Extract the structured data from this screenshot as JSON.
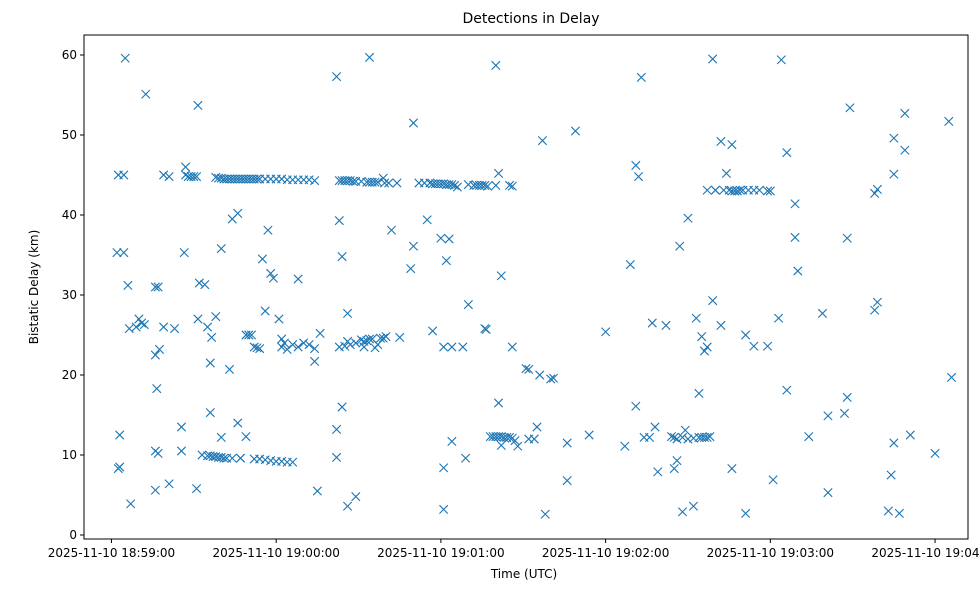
{
  "chart_data": {
    "type": "scatter",
    "title": "Detections in Delay",
    "xlabel": "Time (UTC)",
    "ylabel": "Bistatic Delay (km)",
    "marker": "x",
    "color": "#1f77b4",
    "grid": false,
    "x_ticks": [
      {
        "t": 0,
        "label": "2025-11-10 18:59:00"
      },
      {
        "t": 60,
        "label": "2025-11-10 19:00:00"
      },
      {
        "t": 120,
        "label": "2025-11-10 19:01:00"
      },
      {
        "t": 180,
        "label": "2025-11-10 19:02:00"
      },
      {
        "t": 240,
        "label": "2025-11-10 19:03:00"
      },
      {
        "t": 300,
        "label": "2025-11-10 19:04:00"
      }
    ],
    "y_ticks": [
      0,
      10,
      20,
      30,
      40,
      50,
      60
    ],
    "xlim": [
      -10,
      312
    ],
    "ylim": [
      -0.5,
      62.5
    ],
    "points": [
      [
        2.5,
        45.0
      ],
      [
        4.5,
        45.0
      ],
      [
        2.0,
        35.3
      ],
      [
        4.5,
        35.3
      ],
      [
        5.0,
        59.6
      ],
      [
        12.5,
        55.1
      ],
      [
        6.0,
        31.2
      ],
      [
        6.5,
        25.8
      ],
      [
        9.0,
        26.0
      ],
      [
        10.0,
        27.0
      ],
      [
        11.0,
        26.5
      ],
      [
        12.0,
        26.3
      ],
      [
        3.0,
        12.5
      ],
      [
        2.5,
        8.3
      ],
      [
        3.0,
        8.5
      ],
      [
        7.0,
        3.9
      ],
      [
        16.0,
        31.0
      ],
      [
        17.0,
        31.0
      ],
      [
        16.0,
        22.5
      ],
      [
        17.5,
        23.2
      ],
      [
        19.0,
        26.0
      ],
      [
        16.5,
        18.3
      ],
      [
        16.0,
        10.5
      ],
      [
        17.0,
        10.2
      ],
      [
        16.0,
        5.6
      ],
      [
        21.0,
        6.4
      ],
      [
        19.0,
        45.0
      ],
      [
        21.0,
        44.8
      ],
      [
        23.0,
        25.8
      ],
      [
        27.0,
        46.0
      ],
      [
        27.0,
        45.0
      ],
      [
        28.0,
        44.8
      ],
      [
        29.0,
        44.8
      ],
      [
        30.0,
        44.8
      ],
      [
        31.0,
        44.8
      ],
      [
        26.5,
        35.3
      ],
      [
        31.5,
        53.7
      ],
      [
        32.0,
        31.5
      ],
      [
        34.0,
        31.3
      ],
      [
        31.5,
        27.0
      ],
      [
        35.0,
        26.0
      ],
      [
        36.5,
        24.7
      ],
      [
        38.0,
        27.3
      ],
      [
        36.0,
        21.5
      ],
      [
        25.5,
        13.5
      ],
      [
        25.5,
        10.5
      ],
      [
        31.0,
        5.8
      ],
      [
        36.0,
        15.3
      ],
      [
        40.0,
        12.2
      ],
      [
        33.0,
        10.0
      ],
      [
        35.0,
        9.9
      ],
      [
        36.0,
        9.9
      ],
      [
        37.0,
        9.8
      ],
      [
        38.0,
        9.8
      ],
      [
        39.0,
        9.7
      ],
      [
        40.0,
        9.7
      ],
      [
        41.0,
        9.6
      ],
      [
        42.0,
        9.6
      ],
      [
        44.0,
        9.6
      ],
      [
        47.0,
        9.6
      ],
      [
        38.0,
        44.7
      ],
      [
        39.0,
        44.6
      ],
      [
        40.0,
        44.6
      ],
      [
        41.0,
        44.5
      ],
      [
        42.0,
        44.5
      ],
      [
        43.0,
        44.5
      ],
      [
        44.0,
        44.5
      ],
      [
        45.0,
        44.5
      ],
      [
        46.0,
        44.5
      ],
      [
        47.0,
        44.5
      ],
      [
        48.0,
        44.5
      ],
      [
        49.0,
        44.5
      ],
      [
        50.0,
        44.5
      ],
      [
        51.0,
        44.5
      ],
      [
        52.0,
        44.5
      ],
      [
        53.0,
        44.5
      ],
      [
        54.0,
        44.5
      ],
      [
        56.0,
        44.5
      ],
      [
        58.0,
        44.5
      ],
      [
        60.0,
        44.5
      ],
      [
        62.0,
        44.5
      ],
      [
        64.0,
        44.4
      ],
      [
        66.0,
        44.4
      ],
      [
        68.0,
        44.4
      ],
      [
        70.0,
        44.4
      ],
      [
        72.0,
        44.4
      ],
      [
        74.0,
        44.3
      ],
      [
        44.0,
        39.5
      ],
      [
        46.0,
        40.2
      ],
      [
        40.0,
        35.8
      ],
      [
        43.0,
        20.7
      ],
      [
        46.0,
        14.0
      ],
      [
        47.0,
        9.6
      ],
      [
        49.0,
        12.3
      ],
      [
        49.0,
        25.0
      ],
      [
        50.0,
        25.0
      ],
      [
        51.0,
        25.0
      ],
      [
        52.0,
        23.5
      ],
      [
        53.0,
        23.4
      ],
      [
        54.0,
        23.3
      ],
      [
        55.0,
        34.5
      ],
      [
        57.0,
        38.1
      ],
      [
        58.0,
        32.7
      ],
      [
        59.0,
        32.1
      ],
      [
        61.0,
        27.0
      ],
      [
        56.0,
        28.0
      ],
      [
        62.0,
        24.5
      ],
      [
        63.0,
        24.0
      ],
      [
        62.0,
        23.5
      ],
      [
        64.0,
        23.2
      ],
      [
        66.0,
        23.8
      ],
      [
        68.0,
        23.5
      ],
      [
        70.0,
        24.0
      ],
      [
        72.0,
        23.8
      ],
      [
        74.0,
        23.3
      ],
      [
        76.0,
        25.2
      ],
      [
        74.0,
        21.7
      ],
      [
        68.0,
        32.0
      ],
      [
        52.0,
        9.5
      ],
      [
        54.0,
        9.5
      ],
      [
        56.0,
        9.4
      ],
      [
        58.0,
        9.3
      ],
      [
        60.0,
        9.2
      ],
      [
        62.0,
        9.2
      ],
      [
        64.0,
        9.1
      ],
      [
        66.0,
        9.1
      ],
      [
        75.0,
        5.5
      ],
      [
        82.0,
        57.3
      ],
      [
        83.0,
        39.3
      ],
      [
        84.0,
        34.8
      ],
      [
        86.0,
        27.7
      ],
      [
        83.0,
        44.3
      ],
      [
        84.0,
        44.3
      ],
      [
        85.0,
        44.3
      ],
      [
        86.0,
        44.3
      ],
      [
        87.0,
        44.3
      ],
      [
        88.0,
        44.2
      ],
      [
        89.0,
        44.2
      ],
      [
        91.0,
        44.2
      ],
      [
        93.0,
        44.1
      ],
      [
        94.0,
        44.1
      ],
      [
        95.0,
        44.1
      ],
      [
        96.0,
        44.1
      ],
      [
        97.0,
        44.1
      ],
      [
        99.0,
        44.6
      ],
      [
        99.5,
        44.0
      ],
      [
        101.0,
        44.0
      ],
      [
        104.0,
        44.0
      ],
      [
        94.0,
        59.7
      ],
      [
        102.0,
        38.1
      ],
      [
        109.0,
        33.3
      ],
      [
        110.0,
        36.1
      ],
      [
        110.0,
        51.5
      ],
      [
        112.0,
        44.0
      ],
      [
        114.0,
        44.0
      ],
      [
        115.0,
        39.4
      ],
      [
        116.0,
        44.0
      ],
      [
        83.0,
        23.5
      ],
      [
        85.0,
        23.6
      ],
      [
        86.0,
        24.2
      ],
      [
        87.0,
        23.8
      ],
      [
        89.0,
        24.0
      ],
      [
        91.0,
        24.4
      ],
      [
        92.0,
        24.2
      ],
      [
        93.0,
        24.3
      ],
      [
        94.0,
        24.5
      ],
      [
        95.0,
        24.5
      ],
      [
        96.0,
        23.4
      ],
      [
        97.0,
        23.8
      ],
      [
        98.0,
        24.6
      ],
      [
        99.0,
        24.6
      ],
      [
        100.0,
        24.8
      ],
      [
        105.0,
        24.7
      ],
      [
        92.0,
        23.5
      ],
      [
        82.0,
        13.2
      ],
      [
        84.0,
        16.0
      ],
      [
        82.0,
        9.7
      ],
      [
        86.0,
        3.6
      ],
      [
        89.0,
        4.8
      ],
      [
        117.0,
        43.9
      ],
      [
        118.0,
        43.9
      ],
      [
        119.0,
        43.9
      ],
      [
        120.0,
        43.9
      ],
      [
        121.0,
        43.9
      ],
      [
        122.0,
        43.8
      ],
      [
        123.0,
        43.8
      ],
      [
        124.0,
        43.8
      ],
      [
        125.0,
        43.7
      ],
      [
        126.0,
        43.5
      ],
      [
        130.0,
        43.8
      ],
      [
        132.0,
        43.7
      ],
      [
        133.0,
        43.7
      ],
      [
        134.0,
        43.7
      ],
      [
        135.0,
        43.7
      ],
      [
        136.0,
        43.7
      ],
      [
        137.0,
        43.6
      ],
      [
        140.0,
        43.7
      ],
      [
        140.0,
        58.7
      ],
      [
        141.0,
        45.2
      ],
      [
        146.0,
        43.6
      ],
      [
        145.0,
        43.7
      ],
      [
        120.0,
        37.1
      ],
      [
        123.0,
        37.0
      ],
      [
        122.0,
        34.3
      ],
      [
        142.0,
        32.4
      ],
      [
        130.0,
        28.8
      ],
      [
        136.0,
        25.8
      ],
      [
        136.5,
        25.7
      ],
      [
        117.0,
        25.5
      ],
      [
        121.0,
        23.5
      ],
      [
        124.0,
        23.5
      ],
      [
        128.0,
        23.5
      ],
      [
        146.0,
        23.5
      ],
      [
        151.0,
        20.8
      ],
      [
        152.0,
        20.7
      ],
      [
        156.0,
        20.0
      ],
      [
        160.0,
        19.5
      ],
      [
        161.0,
        19.6
      ],
      [
        138.0,
        12.3
      ],
      [
        139.0,
        12.3
      ],
      [
        140.0,
        12.3
      ],
      [
        141.0,
        12.3
      ],
      [
        142.0,
        12.3
      ],
      [
        143.0,
        12.2
      ],
      [
        144.0,
        12.2
      ],
      [
        145.0,
        12.2
      ],
      [
        146.0,
        12.1
      ],
      [
        147.0,
        11.8
      ],
      [
        142.0,
        11.2
      ],
      [
        141.0,
        16.5
      ],
      [
        124.0,
        11.7
      ],
      [
        129.0,
        9.6
      ],
      [
        121.0,
        8.4
      ],
      [
        121.0,
        3.2
      ],
      [
        148.0,
        11.1
      ],
      [
        152.0,
        12.0
      ],
      [
        154.0,
        12.0
      ],
      [
        155.0,
        13.5
      ],
      [
        157.0,
        49.3
      ],
      [
        169.0,
        50.5
      ],
      [
        158.0,
        2.6
      ],
      [
        166.0,
        6.8
      ],
      [
        166.0,
        11.5
      ],
      [
        174.0,
        12.5
      ],
      [
        180.0,
        25.4
      ],
      [
        187.0,
        11.1
      ],
      [
        189.0,
        33.8
      ],
      [
        191.0,
        46.2
      ],
      [
        192.0,
        44.8
      ],
      [
        193.0,
        57.2
      ],
      [
        191.0,
        16.1
      ],
      [
        194.0,
        12.2
      ],
      [
        196.0,
        12.2
      ],
      [
        197.0,
        26.5
      ],
      [
        198.0,
        13.5
      ],
      [
        199.0,
        7.9
      ],
      [
        202.0,
        26.2
      ],
      [
        204.0,
        12.3
      ],
      [
        205.0,
        12.2
      ],
      [
        206.0,
        12.0
      ],
      [
        208.0,
        12.2
      ],
      [
        210.0,
        12.0
      ],
      [
        212.0,
        12.1
      ],
      [
        214.0,
        12.2
      ],
      [
        215.0,
        12.2
      ],
      [
        216.0,
        12.2
      ],
      [
        217.0,
        12.2
      ],
      [
        218.0,
        12.3
      ],
      [
        205.0,
        8.3
      ],
      [
        206.0,
        9.3
      ],
      [
        207.0,
        36.1
      ],
      [
        210.0,
        39.6
      ],
      [
        208.0,
        2.9
      ],
      [
        209.0,
        13.1
      ],
      [
        212.0,
        3.6
      ],
      [
        213.0,
        27.1
      ],
      [
        214.0,
        17.7
      ],
      [
        215.0,
        24.8
      ],
      [
        216.0,
        23.0
      ],
      [
        217.0,
        23.5
      ],
      [
        219.0,
        29.3
      ],
      [
        220.0,
        43.1
      ],
      [
        222.0,
        26.2
      ],
      [
        217.0,
        43.1
      ],
      [
        220.0,
        43.1
      ],
      [
        223.0,
        43.1
      ],
      [
        225.0,
        43.1
      ],
      [
        226.0,
        43.0
      ],
      [
        227.0,
        43.0
      ],
      [
        228.0,
        43.0
      ],
      [
        229.0,
        43.1
      ],
      [
        230.0,
        43.1
      ],
      [
        232.0,
        43.1
      ],
      [
        234.0,
        43.1
      ],
      [
        236.0,
        43.1
      ],
      [
        239.0,
        43.0
      ],
      [
        240.0,
        43.0
      ],
      [
        219.0,
        59.5
      ],
      [
        222.0,
        49.2
      ],
      [
        224.0,
        45.2
      ],
      [
        226.0,
        48.8
      ],
      [
        226.0,
        8.3
      ],
      [
        231.0,
        25.0
      ],
      [
        231.0,
        2.7
      ],
      [
        234.0,
        23.6
      ],
      [
        239.0,
        23.6
      ],
      [
        241.0,
        6.9
      ],
      [
        243.0,
        27.1
      ],
      [
        244.0,
        59.4
      ],
      [
        246.0,
        47.8
      ],
      [
        246.0,
        18.1
      ],
      [
        249.0,
        41.4
      ],
      [
        249.0,
        37.2
      ],
      [
        250.0,
        33.0
      ],
      [
        254.0,
        12.3
      ],
      [
        259.0,
        27.7
      ],
      [
        261.0,
        5.3
      ],
      [
        261.0,
        14.9
      ],
      [
        267.0,
        15.2
      ],
      [
        268.0,
        17.2
      ],
      [
        268.0,
        37.1
      ],
      [
        269.0,
        53.4
      ],
      [
        278.0,
        28.1
      ],
      [
        279.0,
        29.1
      ],
      [
        278.0,
        42.7
      ],
      [
        279.0,
        43.2
      ],
      [
        283.0,
        3.0
      ],
      [
        284.0,
        7.5
      ],
      [
        285.0,
        11.5
      ],
      [
        285.0,
        45.1
      ],
      [
        285.0,
        49.6
      ],
      [
        287.0,
        2.7
      ],
      [
        289.0,
        48.1
      ],
      [
        289.0,
        52.7
      ],
      [
        291.0,
        12.5
      ],
      [
        300.0,
        10.2
      ],
      [
        305.0,
        51.7
      ],
      [
        306.0,
        19.7
      ]
    ]
  }
}
